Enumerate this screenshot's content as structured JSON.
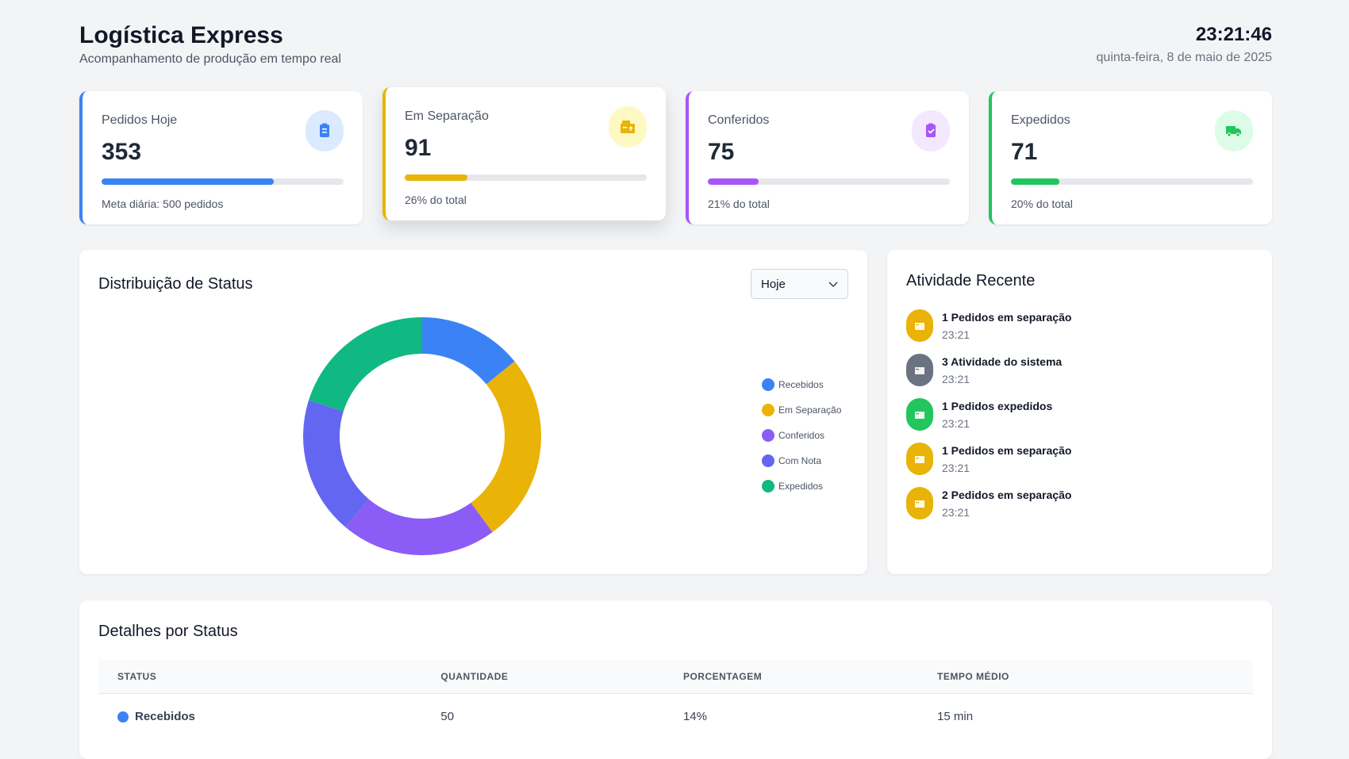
{
  "header": {
    "title": "Logística Express",
    "subtitle": "Acompanhamento de produção em tempo real",
    "time": "23:21:46",
    "date": "quinta-feira, 8 de maio de 2025"
  },
  "cards": [
    {
      "label": "Pedidos Hoje",
      "value": 353,
      "progress": 71,
      "note": "Meta diária: 500 pedidos",
      "color": "#3b82f6",
      "tint": "#dbeafe"
    },
    {
      "label": "Em Separação",
      "value": 91,
      "progress": 26,
      "note": "26% do total",
      "color": "#eab308",
      "tint": "#fef9c3"
    },
    {
      "label": "Conferidos",
      "value": 75,
      "progress": 21,
      "note": "21% do total",
      "color": "#a855f7",
      "tint": "#f3e8ff"
    },
    {
      "label": "Expedidos",
      "value": 71,
      "progress": 20,
      "note": "20% do total",
      "color": "#22c55e",
      "tint": "#dcfce7"
    }
  ],
  "chart_data": {
    "type": "donut",
    "title": "Distribuição de Status",
    "filter": "Hoje",
    "categories": [
      "Recebidos",
      "Em Separação",
      "Conferidos",
      "Com Nota",
      "Expedidos"
    ],
    "values": [
      50,
      91,
      75,
      66,
      71
    ],
    "colors": [
      "#3b82f6",
      "#eab308",
      "#8b5cf6",
      "#6366f1",
      "#10b981"
    ]
  },
  "activity": {
    "title": "Atividade Recente",
    "items": [
      {
        "text": "1 Pedidos em separação",
        "time": "23:21",
        "color": "#eab308"
      },
      {
        "text": "3 Atividade do sistema",
        "time": "23:21",
        "color": "#6b7280"
      },
      {
        "text": "1 Pedidos expedidos",
        "time": "23:21",
        "color": "#22c55e"
      },
      {
        "text": "1 Pedidos em separação",
        "time": "23:21",
        "color": "#eab308"
      },
      {
        "text": "2 Pedidos em separação",
        "time": "23:21",
        "color": "#eab308"
      }
    ]
  },
  "table": {
    "title": "Detalhes por Status",
    "columns": [
      "STATUS",
      "QUANTIDADE",
      "PORCENTAGEM",
      "TEMPO MÉDIO"
    ],
    "rows": [
      [
        "Recebidos",
        50,
        "14%",
        "15 min"
      ]
    ]
  }
}
